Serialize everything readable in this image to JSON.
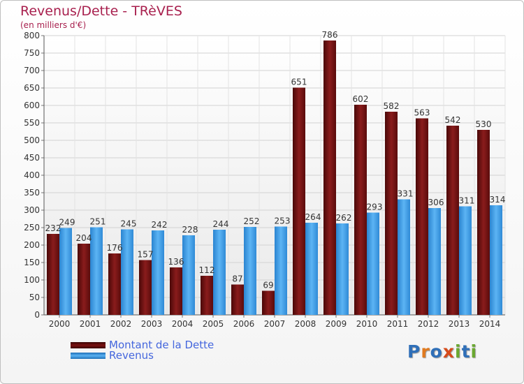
{
  "chart_data": {
    "type": "bar",
    "title": "Revenus/Dette - TRèVES",
    "subtitle": "(en milliers d'€)",
    "categories": [
      "2000",
      "2001",
      "2002",
      "2003",
      "2004",
      "2005",
      "2006",
      "2007",
      "2008",
      "2009",
      "2010",
      "2011",
      "2012",
      "2013",
      "2014"
    ],
    "series": [
      {
        "name": "Montant de la Dette",
        "color": "#7a1212",
        "values": [
          232,
          204,
          176,
          157,
          136,
          112,
          87,
          69,
          651,
          786,
          602,
          582,
          563,
          542,
          530
        ]
      },
      {
        "name": "Revenus",
        "color": "#3f9be0",
        "values": [
          249,
          251,
          245,
          242,
          228,
          244,
          252,
          253,
          264,
          262,
          293,
          331,
          306,
          311,
          314
        ]
      }
    ],
    "ylim": [
      0,
      800
    ],
    "yticks": [
      0,
      50,
      100,
      150,
      200,
      250,
      300,
      350,
      400,
      450,
      500,
      550,
      600,
      650,
      700,
      750,
      800
    ],
    "grid": true,
    "legend_position": "bottom-left"
  },
  "logo": {
    "letters": [
      "P",
      "r",
      "o",
      "x",
      "i",
      "t",
      "i"
    ],
    "colors": [
      "#2f6fb8",
      "#e07a1f",
      "#2f6fb8",
      "#d64a1a",
      "#6aa830",
      "#2f6fb8",
      "#6aa830"
    ]
  }
}
